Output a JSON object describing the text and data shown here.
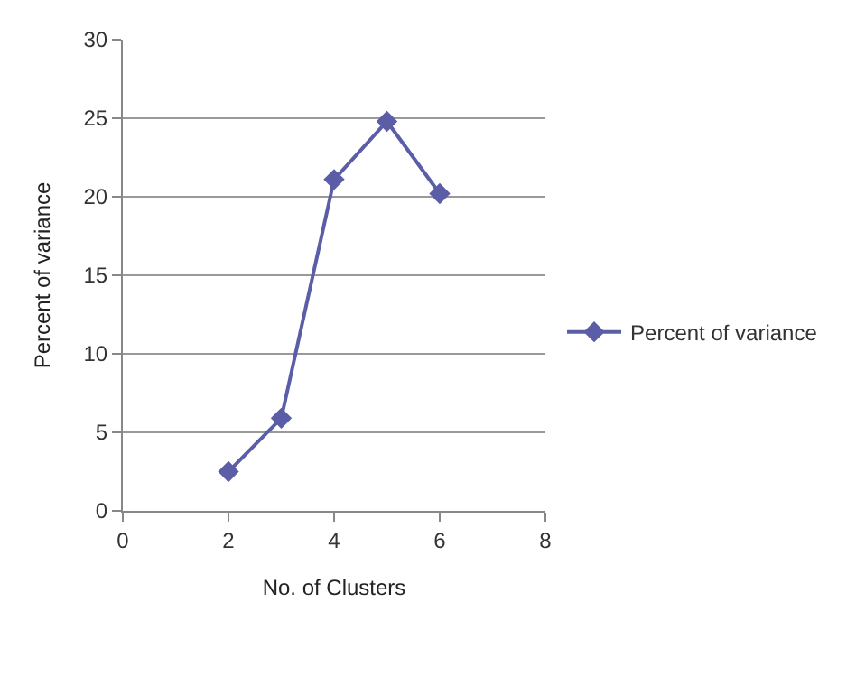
{
  "chart_data": {
    "type": "line",
    "xlabel": "No. of Clusters",
    "ylabel": "Percent of variance",
    "x": [
      2,
      3,
      4,
      5,
      6
    ],
    "series": [
      {
        "name": "Percent of variance",
        "color": "#5b5ea6",
        "values": [
          2.5,
          5.9,
          21.1,
          24.8,
          20.2
        ]
      }
    ],
    "xlim": [
      0,
      8
    ],
    "xticks": [
      0,
      2,
      4,
      6,
      8
    ],
    "ylim": [
      0,
      30
    ],
    "yticks": [
      0,
      5,
      10,
      15,
      20,
      25,
      30
    ],
    "grid": "y",
    "legend": "right",
    "marker": "diamond",
    "line_style": "solid"
  }
}
